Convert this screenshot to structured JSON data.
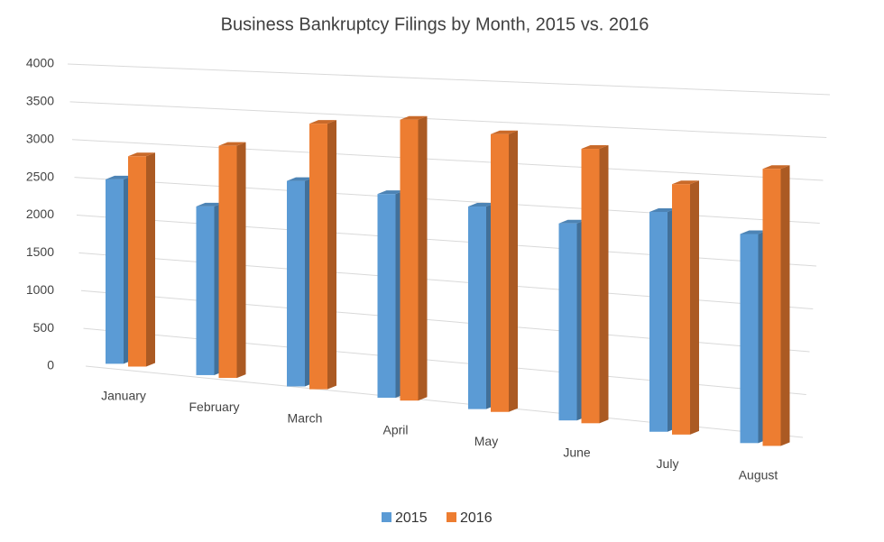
{
  "chart_data": {
    "type": "bar",
    "title": "Business Bankruptcy Filings by Month, 2015 vs. 2016",
    "categories": [
      "January",
      "February",
      "March",
      "April",
      "May",
      "June",
      "July",
      "August"
    ],
    "series": [
      {
        "name": "2015",
        "color": "#5b9bd5",
        "values": [
          2440,
          2190,
          2620,
          2550,
          2490,
          2380,
          2610,
          2440
        ]
      },
      {
        "name": "2016",
        "color": "#ed7d31",
        "values": [
          2770,
          3000,
          3370,
          3500,
          3400,
          3300,
          2960,
          3220
        ]
      }
    ],
    "ylim": [
      0,
      4000
    ],
    "yticks": [
      0,
      500,
      1000,
      1500,
      2000,
      2500,
      3000,
      3500,
      4000
    ],
    "grid": true,
    "legend": "bottom"
  }
}
